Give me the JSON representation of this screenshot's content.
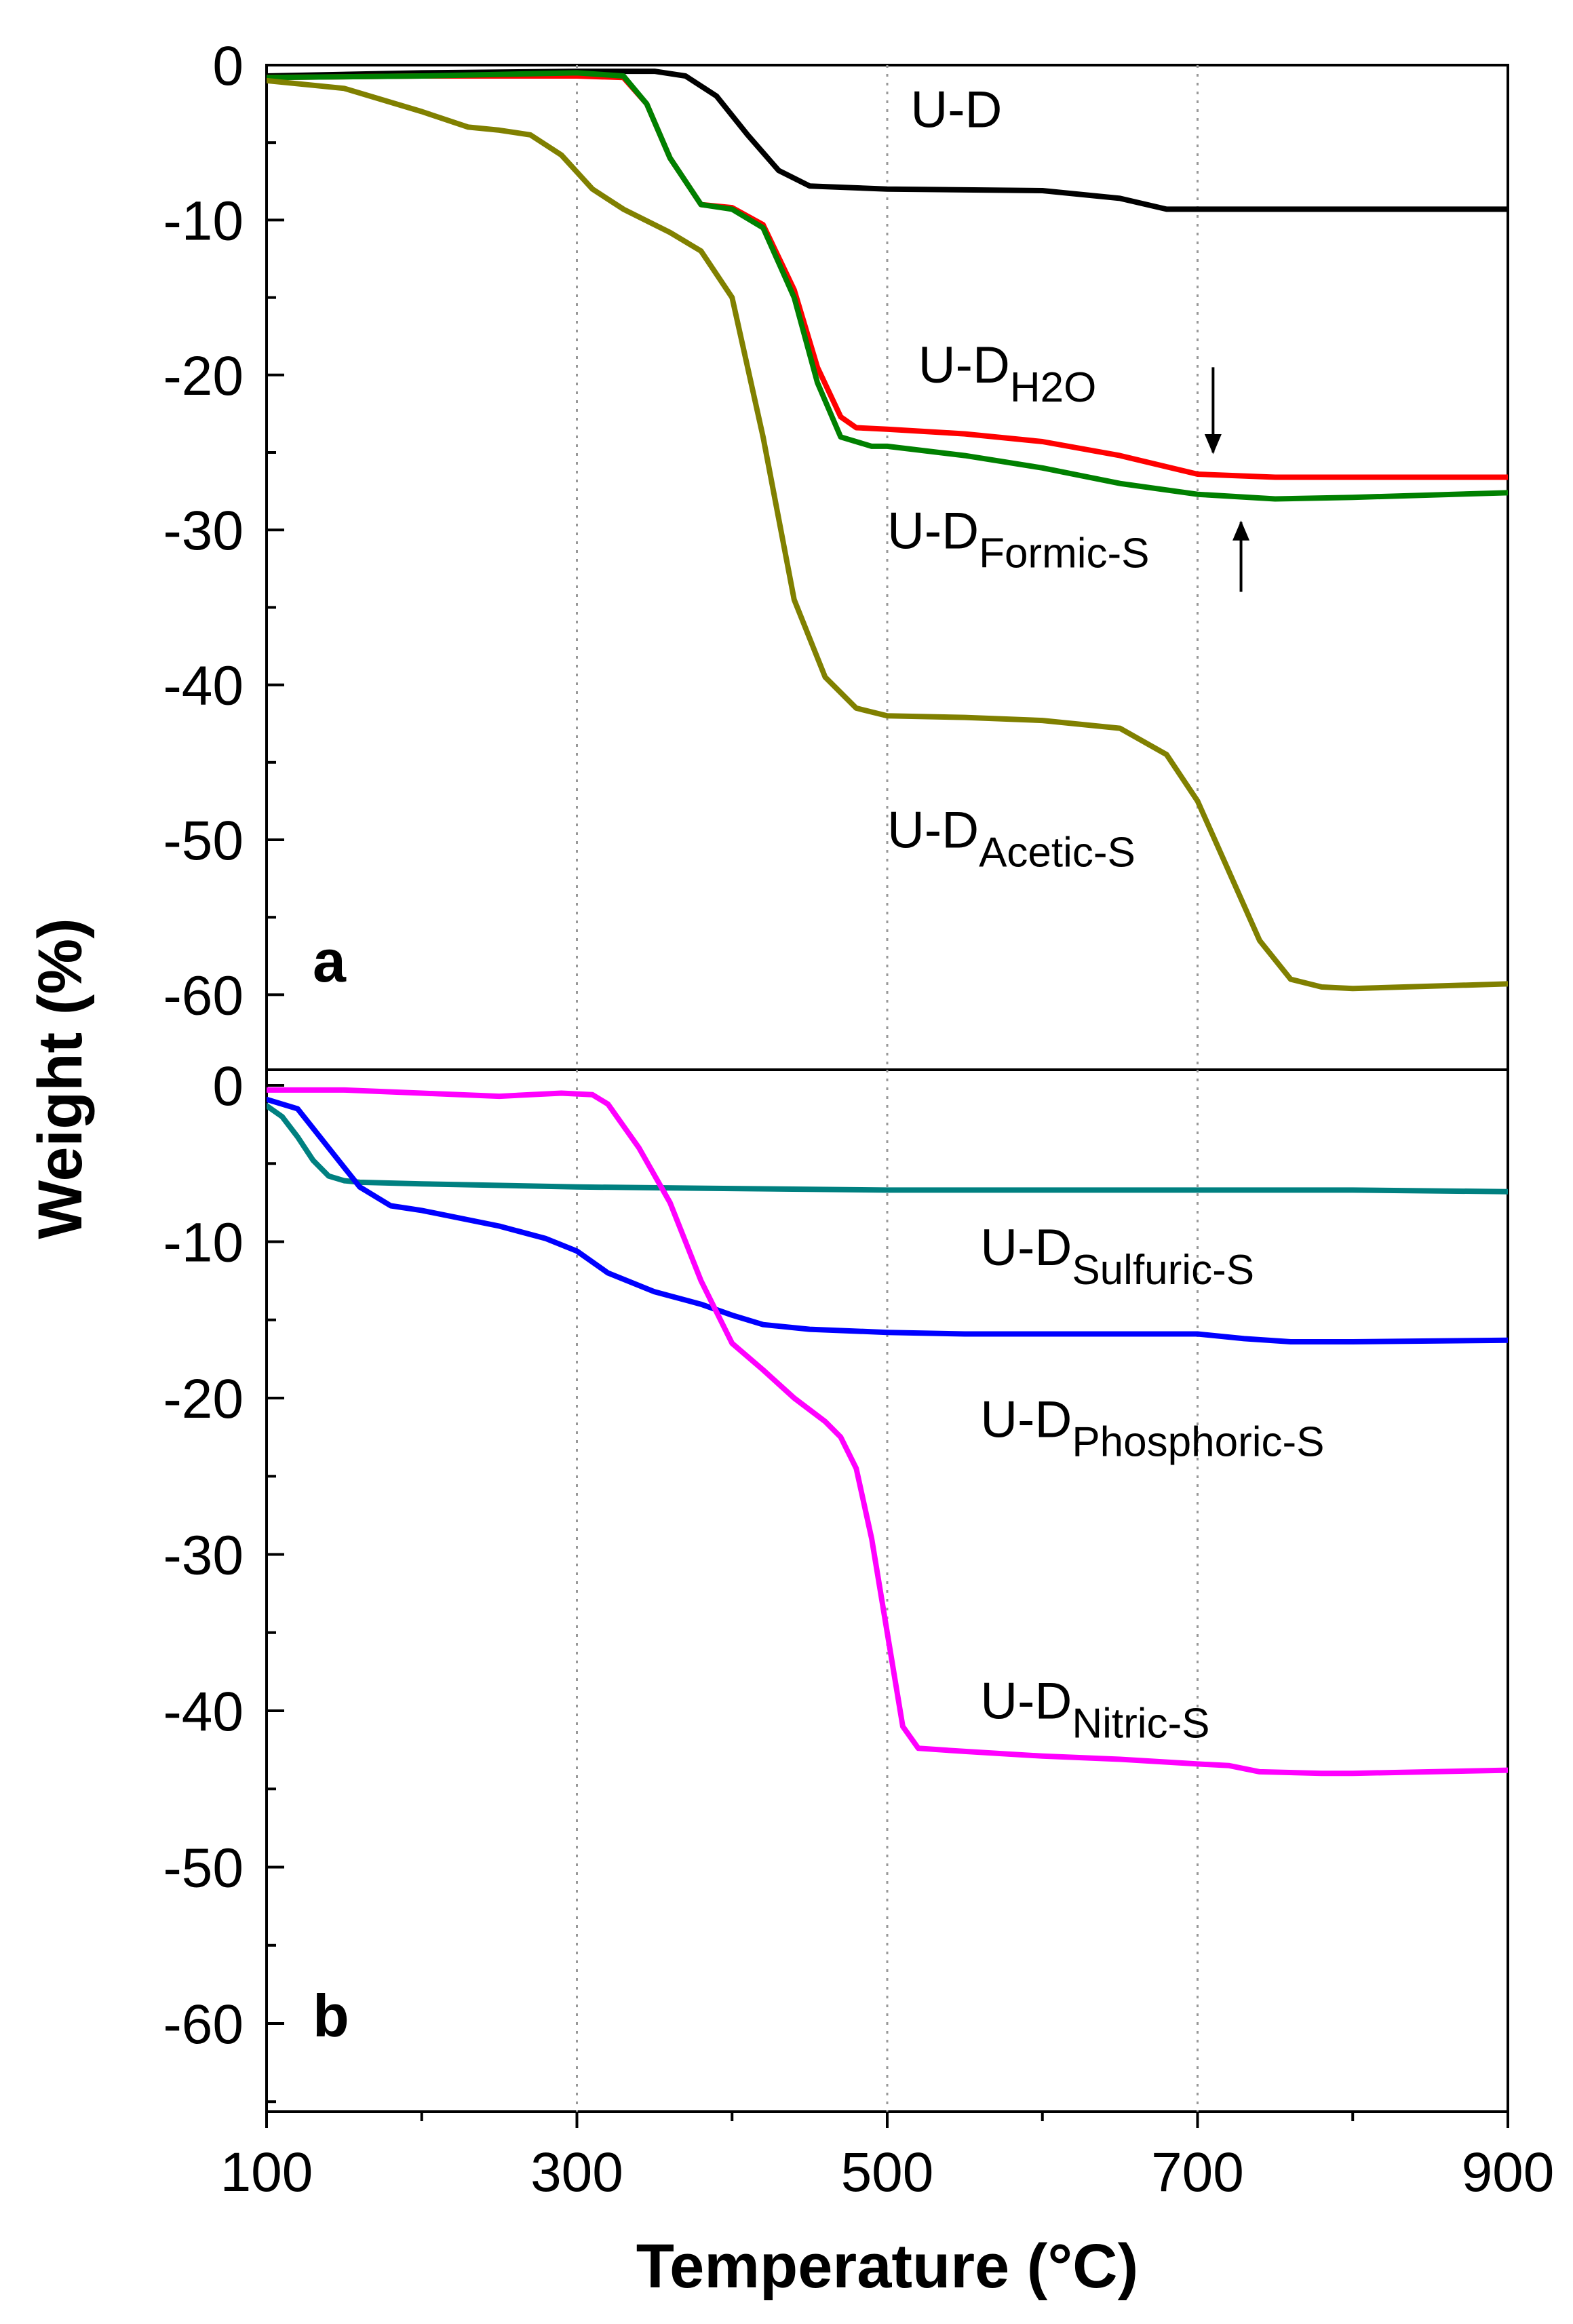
{
  "chart_data": {
    "type": "line",
    "xlabel": "Temperature (°C)",
    "ylabel": "Weight (%)",
    "xlim": [
      100,
      900
    ],
    "x_ticks": [
      100,
      300,
      500,
      700,
      900
    ],
    "x_tick_labels": [
      "100",
      "300",
      "500",
      "700",
      "900"
    ],
    "vertical_gridlines_at": [
      300,
      500,
      700
    ],
    "panels": [
      {
        "label": "a",
        "ylim": [
          -65,
          0
        ],
        "y_ticks": [
          0,
          -10,
          -20,
          -30,
          -40,
          -50,
          -60
        ],
        "y_tick_labels": [
          "0",
          "-10",
          "-20",
          "-30",
          "-40",
          "-50",
          "-60"
        ],
        "series": [
          {
            "name": "U-D",
            "label_main": "U-D",
            "label_sub": "",
            "color": "#000000",
            "x": [
              100,
              200,
              300,
              350,
              370,
              390,
              410,
              430,
              450,
              500,
              600,
              650,
              680,
              700,
              800,
              900
            ],
            "y": [
              -0.7,
              -0.5,
              -0.4,
              -0.4,
              -0.7,
              -2.0,
              -4.5,
              -6.8,
              -7.8,
              -8.0,
              -8.1,
              -8.6,
              -9.3,
              -9.3,
              -9.3,
              -9.3
            ],
            "label_x": 515,
            "label_y": -4
          },
          {
            "name": "U-D H2O",
            "label_main": "U-D",
            "label_sub": "H2O",
            "color": "#ff0000",
            "x": [
              100,
              200,
              300,
              330,
              345,
              360,
              380,
              400,
              420,
              440,
              455,
              470,
              480,
              500,
              550,
              600,
              650,
              700,
              750,
              800,
              900
            ],
            "y": [
              -0.8,
              -0.7,
              -0.7,
              -0.8,
              -2.5,
              -6.0,
              -9.0,
              -9.2,
              -10.3,
              -14.5,
              -19.5,
              -22.7,
              -23.4,
              -23.5,
              -23.8,
              -24.3,
              -25.2,
              -26.4,
              -26.6,
              -26.6,
              -26.6
            ],
            "label_x": 520,
            "label_y": -20.5
          },
          {
            "name": "U-D Formic-S",
            "label_main": "U-D",
            "label_sub": "Formic-S",
            "color": "#008000",
            "x": [
              100,
              200,
              300,
              330,
              345,
              360,
              380,
              400,
              420,
              440,
              455,
              470,
              490,
              500,
              550,
              600,
              650,
              700,
              750,
              800,
              900
            ],
            "y": [
              -0.8,
              -0.7,
              -0.5,
              -0.7,
              -2.5,
              -6.0,
              -9.0,
              -9.3,
              -10.5,
              -15.0,
              -20.5,
              -24.0,
              -24.6,
              -24.6,
              -25.2,
              -26.0,
              -27.0,
              -27.7,
              -28.0,
              -27.9,
              -27.6
            ],
            "label_x": 500,
            "label_y": -31.2
          },
          {
            "name": "U-D Acetic-S",
            "label_main": "U-D",
            "label_sub": "Acetic-S",
            "color": "#808000",
            "x": [
              100,
              150,
              200,
              230,
              250,
              270,
              290,
              310,
              330,
              360,
              380,
              400,
              420,
              440,
              460,
              480,
              500,
              550,
              600,
              650,
              680,
              700,
              720,
              740,
              760,
              780,
              800,
              900
            ],
            "y": [
              -1.0,
              -1.5,
              -3.0,
              -4.0,
              -4.2,
              -4.5,
              -5.8,
              -8.0,
              -9.3,
              -10.8,
              -12.0,
              -15.0,
              -24.0,
              -34.5,
              -39.5,
              -41.5,
              -42.0,
              -42.1,
              -42.3,
              -42.8,
              -44.5,
              -47.5,
              -52.0,
              -56.5,
              -59.0,
              -59.5,
              -59.6,
              -59.3
            ],
            "label_x": 500,
            "label_y": -50.5
          }
        ],
        "annotations": [
          {
            "type": "arrow",
            "direction": "down",
            "x": 710,
            "y_from": -19.5,
            "y_to": -25.0
          },
          {
            "type": "arrow",
            "direction": "up",
            "x": 728,
            "y_from": -34.0,
            "y_to": -29.5
          }
        ]
      },
      {
        "label": "b",
        "ylim": [
          -65,
          0
        ],
        "y_ticks": [
          0,
          -10,
          -20,
          -30,
          -40,
          -50,
          -60
        ],
        "y_tick_labels": [
          "0",
          "-10",
          "-20",
          "-30",
          "-40",
          "-50",
          "-60"
        ],
        "series": [
          {
            "name": "U-D Sulfuric-S",
            "label_main": "U-D",
            "label_sub": "Sulfuric-S",
            "color": "#008080",
            "x": [
              100,
              110,
              120,
              130,
              140,
              150,
              160,
              200,
              300,
              400,
              500,
              600,
              700,
              800,
              900
            ],
            "y": [
              -1.3,
              -2.0,
              -3.3,
              -4.8,
              -5.8,
              -6.1,
              -6.2,
              -6.3,
              -6.5,
              -6.6,
              -6.7,
              -6.7,
              -6.7,
              -6.7,
              -6.8
            ],
            "label_x": 560,
            "label_y": -11.5
          },
          {
            "name": "U-D Phosphoric-S",
            "label_main": "U-D",
            "label_sub": "Phosphoric-S",
            "color": "#0000ff",
            "x": [
              100,
              120,
              140,
              160,
              180,
              200,
              250,
              280,
              300,
              320,
              350,
              380,
              400,
              420,
              450,
              500,
              550,
              600,
              650,
              700,
              730,
              760,
              800,
              900
            ],
            "y": [
              -0.9,
              -1.5,
              -4.0,
              -6.5,
              -7.7,
              -8.0,
              -9.0,
              -9.8,
              -10.6,
              -12.0,
              -13.2,
              -14.0,
              -14.7,
              -15.3,
              -15.6,
              -15.8,
              -15.9,
              -15.9,
              -15.9,
              -15.9,
              -16.2,
              -16.4,
              -16.4,
              -16.3
            ],
            "label_x": 560,
            "label_y": -22.5
          },
          {
            "name": "U-D Nitric-S",
            "label_main": "U-D",
            "label_sub": "Nitric-S",
            "color": "#ff00ff",
            "x": [
              100,
              150,
              200,
              250,
              270,
              290,
              310,
              320,
              340,
              360,
              380,
              400,
              420,
              440,
              460,
              470,
              480,
              490,
              500,
              510,
              520,
              550,
              600,
              650,
              700,
              720,
              740,
              780,
              800,
              900
            ],
            "y": [
              -0.3,
              -0.3,
              -0.5,
              -0.7,
              -0.6,
              -0.5,
              -0.6,
              -1.2,
              -4.0,
              -7.5,
              -12.5,
              -16.5,
              -18.2,
              -20.0,
              -21.5,
              -22.5,
              -24.5,
              -29.0,
              -35.0,
              -41.0,
              -42.4,
              -42.6,
              -42.9,
              -43.1,
              -43.4,
              -43.5,
              -43.9,
              -44.0,
              -44.0,
              -43.8
            ],
            "label_x": 560,
            "label_y": -40.5
          }
        ],
        "annotations": []
      }
    ]
  }
}
